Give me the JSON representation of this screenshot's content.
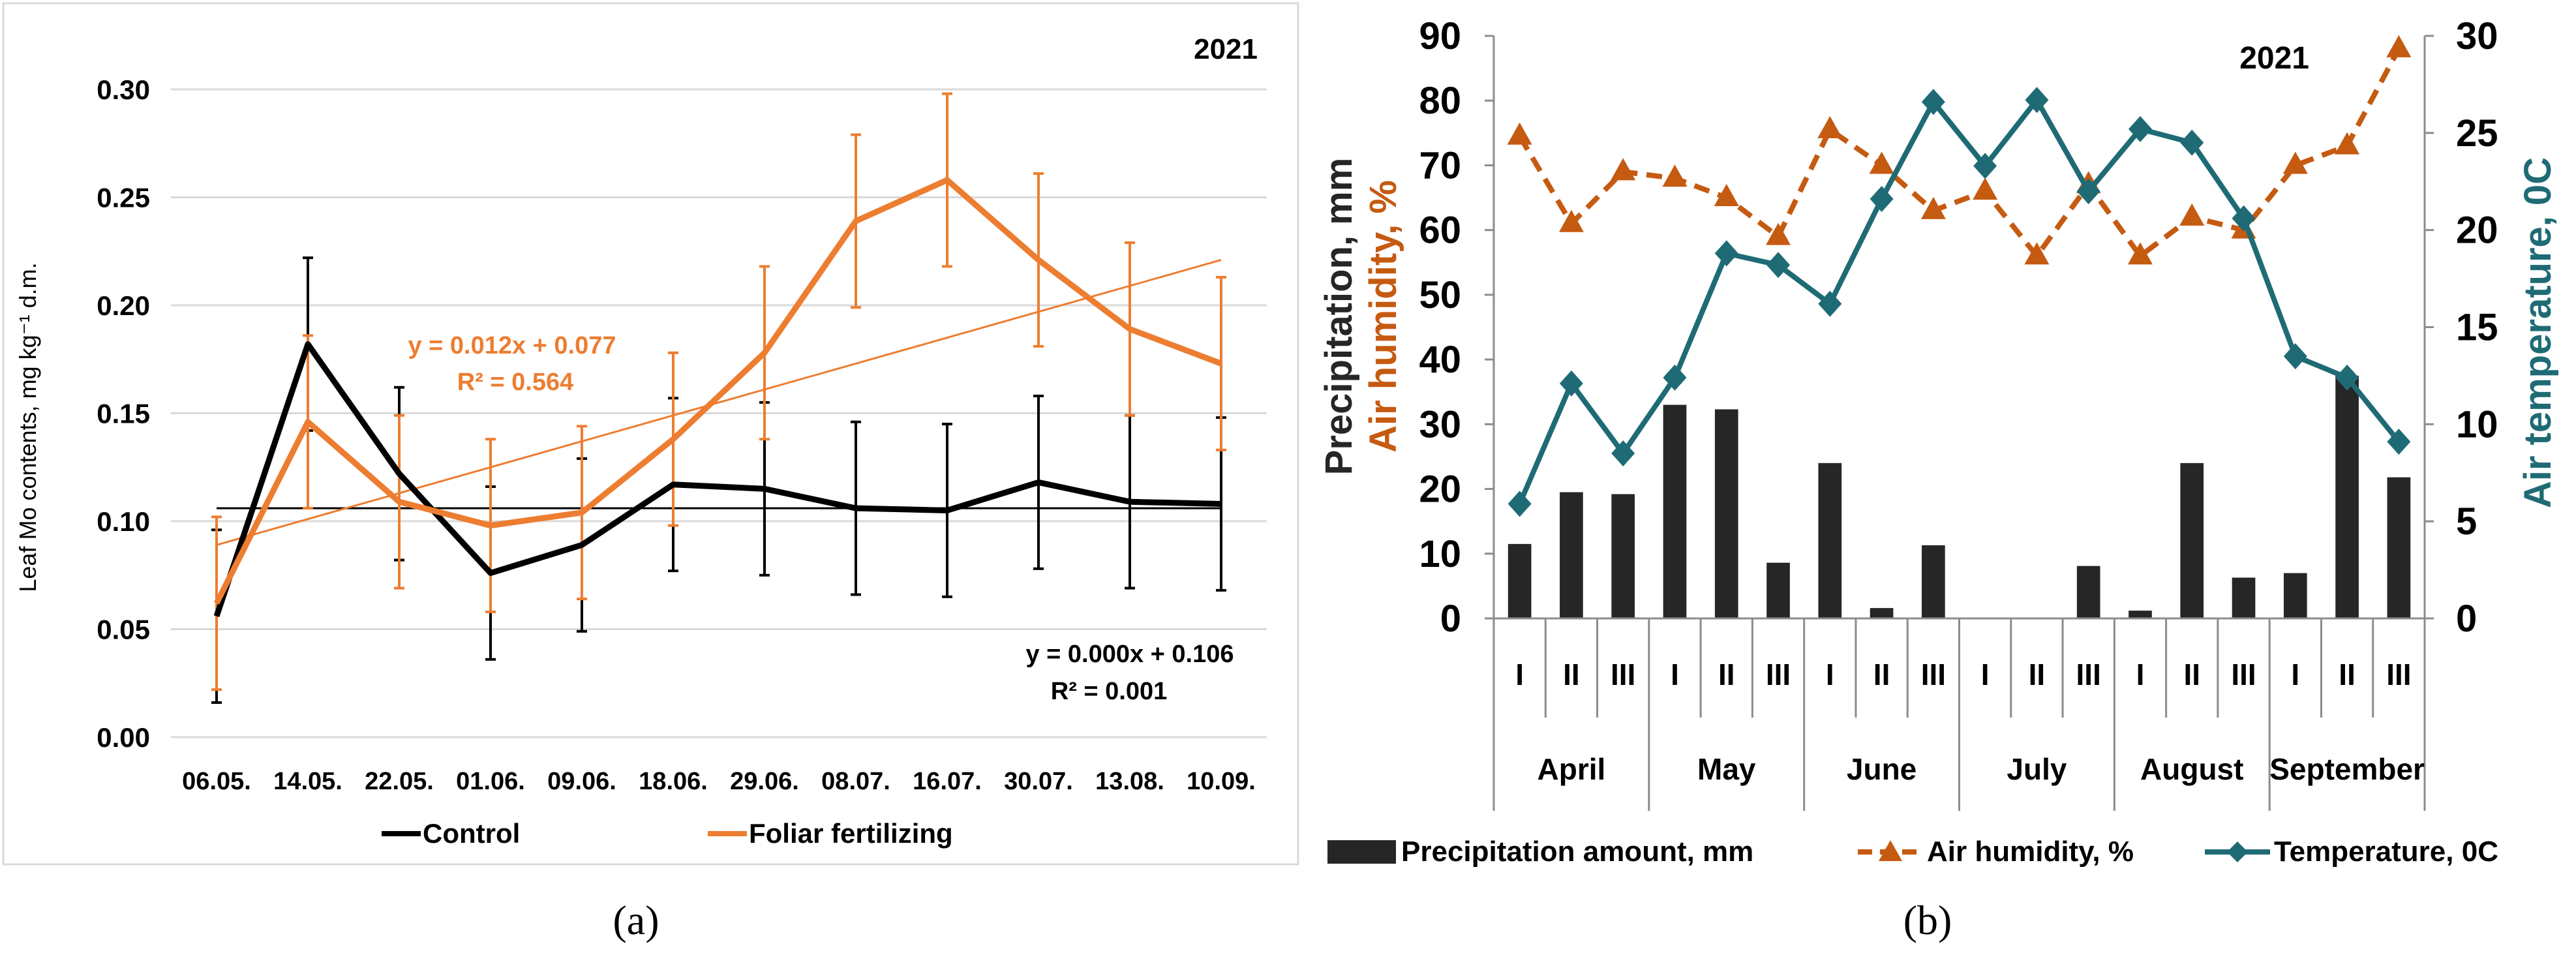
{
  "chart_data": [
    {
      "panel_label": "(a)",
      "type": "line",
      "year_label": "2021",
      "ylabel": "Leaf Mo contents, mg kg⁻¹ d.m.",
      "xlabel": "",
      "ylim": [
        0,
        0.3
      ],
      "yticks": [
        "0.00",
        "0.05",
        "0.10",
        "0.15",
        "0.20",
        "0.25",
        "0.30"
      ],
      "categories": [
        "06.05.",
        "14.05.",
        "22.05.",
        "01.06.",
        "09.06.",
        "18.06.",
        "29.06.",
        "08.07.",
        "16.07.",
        "30.07.",
        "13.08.",
        "10.09."
      ],
      "series": [
        {
          "name": "Control",
          "color": "#000000",
          "values": [
            0.056,
            0.182,
            0.122,
            0.076,
            0.089,
            0.117,
            0.115,
            0.106,
            0.105,
            0.118,
            0.109,
            0.108
          ],
          "error": [
            0.04,
            0.04,
            0.04,
            0.04,
            0.04,
            0.04,
            0.04,
            0.04,
            0.04,
            0.04,
            0.04,
            0.04
          ],
          "trend_equation": "y = 0.000x + 0.106",
          "trend_r2": "R² = 0.001",
          "trend": [
            0.106,
            0.0
          ]
        },
        {
          "name": "Foliar fertilizing",
          "color": "#ED7D31",
          "values": [
            0.062,
            0.146,
            0.109,
            0.098,
            0.104,
            0.138,
            0.178,
            0.239,
            0.258,
            0.221,
            0.189,
            0.173
          ],
          "error": [
            0.04,
            0.04,
            0.04,
            0.04,
            0.04,
            0.04,
            0.04,
            0.04,
            0.04,
            0.04,
            0.04,
            0.04
          ],
          "trend_equation": "y = 0.012x + 0.077",
          "trend_r2": "R² = 0.564",
          "trend": [
            0.077,
            0.012
          ]
        }
      ],
      "legend": [
        "Control",
        "Foliar fertilizing"
      ],
      "legend_placement": "bottom",
      "grid": "horizontal"
    },
    {
      "panel_label": "(b)",
      "type": "bar+line",
      "year_label": "2021",
      "ylabel_left_1": "Precipitation, mm",
      "ylabel_left_2": "Air humidity, %",
      "ylabel_right": "Air temperature, 0C",
      "ylim_left": [
        0,
        90
      ],
      "ylim_right": [
        0,
        30
      ],
      "yticks_left": [
        "0",
        "10",
        "20",
        "30",
        "40",
        "50",
        "60",
        "70",
        "80",
        "90"
      ],
      "yticks_right": [
        "0",
        "5",
        "10",
        "15",
        "20",
        "25",
        "30"
      ],
      "decades": [
        "I",
        "II",
        "III",
        "I",
        "II",
        "III",
        "I",
        "II",
        "III",
        "I",
        "II",
        "III",
        "I",
        "II",
        "III",
        "I",
        "II",
        "III"
      ],
      "months": [
        "April",
        "May",
        "June",
        "July",
        "August",
        "September"
      ],
      "series": [
        {
          "name": "Precipitation amount, mm",
          "type": "bar",
          "axis": "left",
          "color": "#262626",
          "values": [
            11.5,
            19.5,
            19.2,
            33.0,
            32.3,
            8.6,
            24.0,
            1.6,
            11.3,
            0,
            0,
            8.1,
            1.2,
            24.0,
            6.3,
            7.0,
            37.5,
            21.8
          ]
        },
        {
          "name": "Air humidity, %",
          "type": "line",
          "axis": "left",
          "color": "#C55A11",
          "values": [
            74.5,
            61.0,
            69.0,
            68.0,
            65.0,
            59.0,
            75.5,
            70.0,
            63.0,
            66.0,
            56.0,
            67.0,
            56.0,
            62.0,
            60.0,
            70.0,
            73.0,
            88.0
          ]
        },
        {
          "name": "Temperature, 0C",
          "type": "line",
          "axis": "right",
          "color": "#1F6B75",
          "values": [
            5.9,
            12.1,
            8.5,
            12.4,
            18.8,
            18.2,
            16.2,
            21.6,
            26.6,
            23.3,
            26.7,
            22.0,
            25.2,
            24.5,
            20.6,
            13.5,
            12.4,
            9.1
          ]
        }
      ],
      "legend": [
        "Precipitation amount, mm",
        "Air humidity, %",
        "Temperature, 0C"
      ],
      "legend_placement": "bottom",
      "grid": "none"
    }
  ]
}
